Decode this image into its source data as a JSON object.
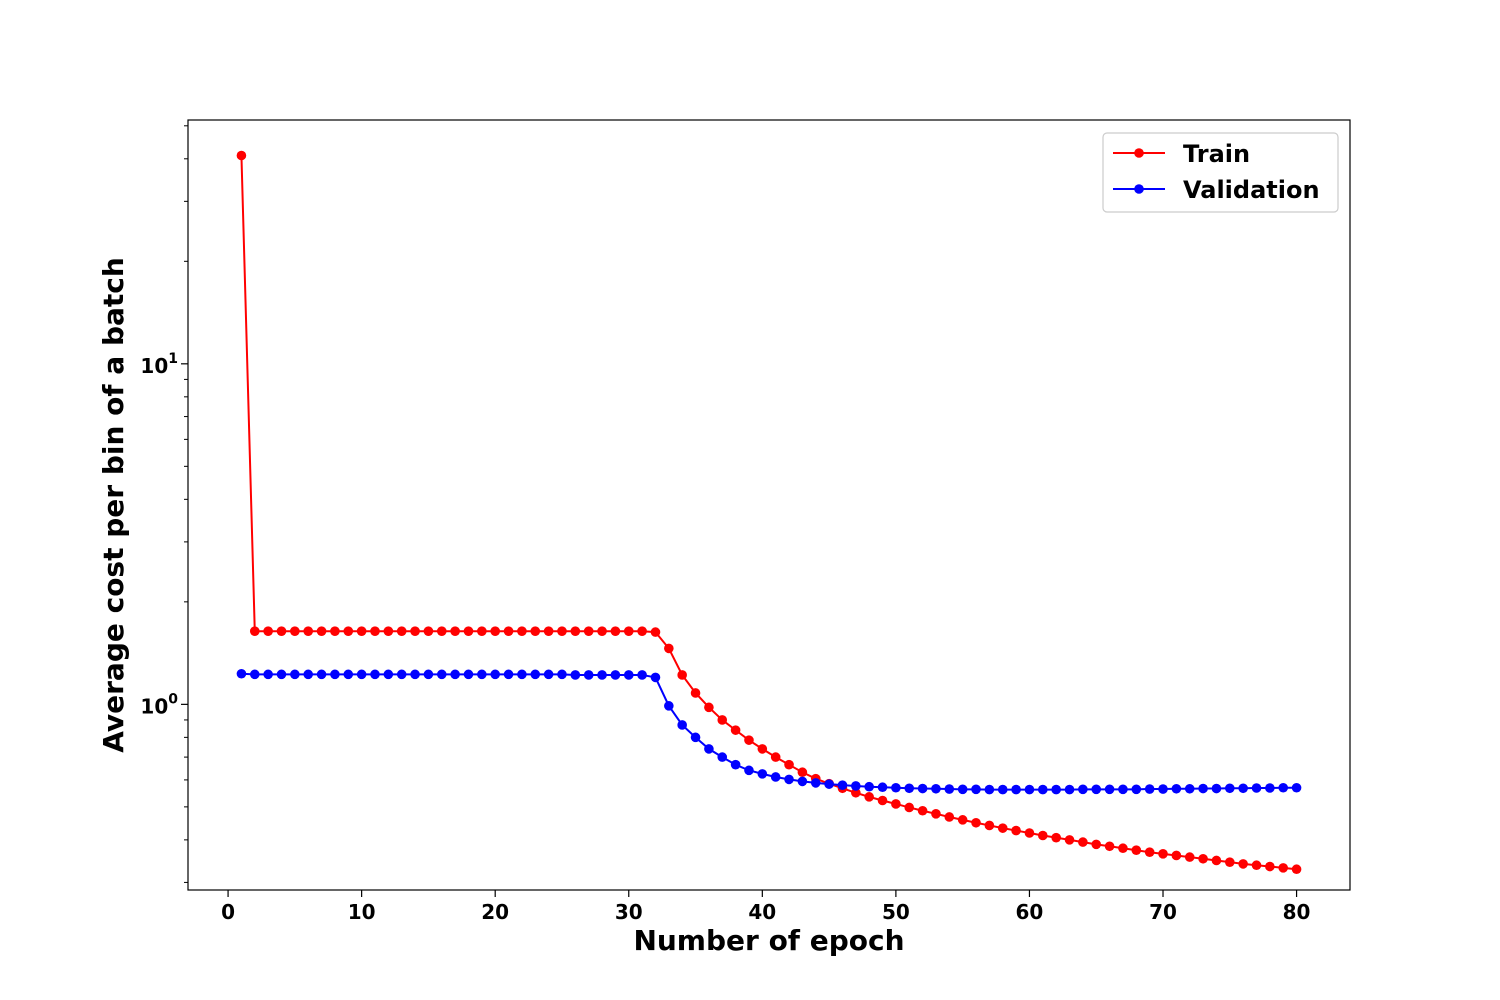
{
  "chart_data": {
    "type": "line",
    "title": "",
    "xlabel": "Number of epoch",
    "ylabel": "Average cost per bin of a batch",
    "xlim": [
      -3,
      84
    ],
    "ylim": [
      0.285,
      52
    ],
    "yscale": "log",
    "xticks": [
      0,
      10,
      20,
      30,
      40,
      50,
      60,
      70,
      80
    ],
    "xtick_labels": [
      "0",
      "10",
      "20",
      "30",
      "40",
      "50",
      "60",
      "70",
      "80"
    ],
    "yticks": [
      1,
      10
    ],
    "ytick_labels": [
      {
        "base": "10",
        "exp": "0"
      },
      {
        "base": "10",
        "exp": "1"
      }
    ],
    "grid": false,
    "legend_position": "top-right",
    "series": [
      {
        "name": "Train",
        "color": "#ff0000",
        "marker": "circle",
        "x": [
          1,
          2,
          3,
          4,
          5,
          6,
          7,
          8,
          9,
          10,
          11,
          12,
          13,
          14,
          15,
          16,
          17,
          18,
          19,
          20,
          21,
          22,
          23,
          24,
          25,
          26,
          27,
          28,
          29,
          30,
          31,
          32,
          33,
          34,
          35,
          36,
          37,
          38,
          39,
          40,
          41,
          42,
          43,
          44,
          45,
          46,
          47,
          48,
          49,
          50,
          51,
          52,
          53,
          54,
          55,
          56,
          57,
          58,
          59,
          60,
          61,
          62,
          63,
          64,
          65,
          66,
          67,
          68,
          69,
          70,
          71,
          72,
          73,
          74,
          75,
          76,
          77,
          78,
          79,
          80
        ],
        "y": [
          40.9,
          1.64,
          1.64,
          1.64,
          1.64,
          1.64,
          1.64,
          1.64,
          1.64,
          1.64,
          1.64,
          1.64,
          1.64,
          1.64,
          1.64,
          1.64,
          1.64,
          1.64,
          1.64,
          1.64,
          1.64,
          1.64,
          1.64,
          1.64,
          1.64,
          1.64,
          1.64,
          1.64,
          1.64,
          1.64,
          1.64,
          1.63,
          1.46,
          1.22,
          1.08,
          0.98,
          0.9,
          0.84,
          0.785,
          0.74,
          0.7,
          0.665,
          0.632,
          0.605,
          0.585,
          0.567,
          0.55,
          0.535,
          0.522,
          0.51,
          0.498,
          0.487,
          0.477,
          0.467,
          0.458,
          0.449,
          0.441,
          0.433,
          0.426,
          0.419,
          0.412,
          0.406,
          0.4,
          0.394,
          0.388,
          0.383,
          0.378,
          0.373,
          0.368,
          0.364,
          0.36,
          0.356,
          0.352,
          0.348,
          0.344,
          0.34,
          0.337,
          0.334,
          0.331,
          0.328
        ]
      },
      {
        "name": "Validation",
        "color": "#0000ff",
        "marker": "circle",
        "x": [
          1,
          2,
          3,
          4,
          5,
          6,
          7,
          8,
          9,
          10,
          11,
          12,
          13,
          14,
          15,
          16,
          17,
          18,
          19,
          20,
          21,
          22,
          23,
          24,
          25,
          26,
          27,
          28,
          29,
          30,
          31,
          32,
          33,
          34,
          35,
          36,
          37,
          38,
          39,
          40,
          41,
          42,
          43,
          44,
          45,
          46,
          47,
          48,
          49,
          50,
          51,
          52,
          53,
          54,
          55,
          56,
          57,
          58,
          59,
          60,
          61,
          62,
          63,
          64,
          65,
          66,
          67,
          68,
          69,
          70,
          71,
          72,
          73,
          74,
          75,
          76,
          77,
          78,
          79,
          80
        ],
        "y": [
          1.23,
          1.225,
          1.225,
          1.225,
          1.225,
          1.225,
          1.225,
          1.225,
          1.225,
          1.225,
          1.225,
          1.225,
          1.225,
          1.225,
          1.225,
          1.225,
          1.225,
          1.225,
          1.225,
          1.225,
          1.225,
          1.225,
          1.225,
          1.225,
          1.225,
          1.22,
          1.22,
          1.22,
          1.22,
          1.22,
          1.22,
          1.2,
          0.99,
          0.87,
          0.8,
          0.74,
          0.7,
          0.665,
          0.64,
          0.625,
          0.612,
          0.602,
          0.594,
          0.588,
          0.583,
          0.579,
          0.576,
          0.573,
          0.571,
          0.569,
          0.567,
          0.566,
          0.565,
          0.564,
          0.563,
          0.563,
          0.562,
          0.562,
          0.562,
          0.562,
          0.562,
          0.562,
          0.562,
          0.563,
          0.563,
          0.563,
          0.563,
          0.563,
          0.564,
          0.564,
          0.565,
          0.565,
          0.566,
          0.566,
          0.567,
          0.567,
          0.568,
          0.568,
          0.569,
          0.569
        ]
      }
    ]
  }
}
